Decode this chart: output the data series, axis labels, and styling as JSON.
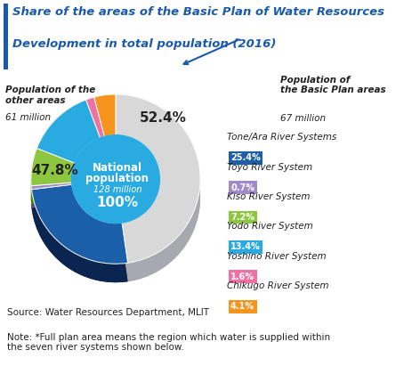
{
  "title_line1": "Share of the areas of the Basic Plan of Water Resources",
  "title_line2": "Development in total population (2016)",
  "title_color": "#1a5aaa",
  "slices": [
    47.8,
    25.4,
    0.7,
    7.2,
    13.4,
    1.6,
    4.1
  ],
  "colors": [
    "#d8d8d8",
    "#1a5fa8",
    "#a08ac8",
    "#8dc63f",
    "#29abe2",
    "#f06fa4",
    "#f7941d"
  ],
  "dark_colors": [
    "#a0a0a8",
    "#0a2a58",
    "#7060a0",
    "#5a8a10",
    "#0870a8",
    "#c03878",
    "#b06010"
  ],
  "center_bg": "#29abe2",
  "center_dark": "#1070a8",
  "legend_items": [
    {
      "label": "Tone/Ara River Systems",
      "pct": "25.4%",
      "color": "#1a5fa8"
    },
    {
      "label": "Toyo River System",
      "pct": "0.7%",
      "color": "#a08ac8"
    },
    {
      "label": "Kiso River System",
      "pct": "7.2%",
      "color": "#8dc63f"
    },
    {
      "label": "Yodo River System",
      "pct": "13.4%",
      "color": "#29abe2"
    },
    {
      "label": "Yoshino River System",
      "pct": "1.6%",
      "color": "#f06fa4"
    },
    {
      "label": "Chikugo River System",
      "pct": "4.1%",
      "color": "#f7941d"
    }
  ],
  "source_text": "Source: Water Resources Department, MLIT",
  "note_text": "Note: *Full plan area means the region which water is supplied within\nthe seven river systems shown below.",
  "bg_color": "#ffffff"
}
